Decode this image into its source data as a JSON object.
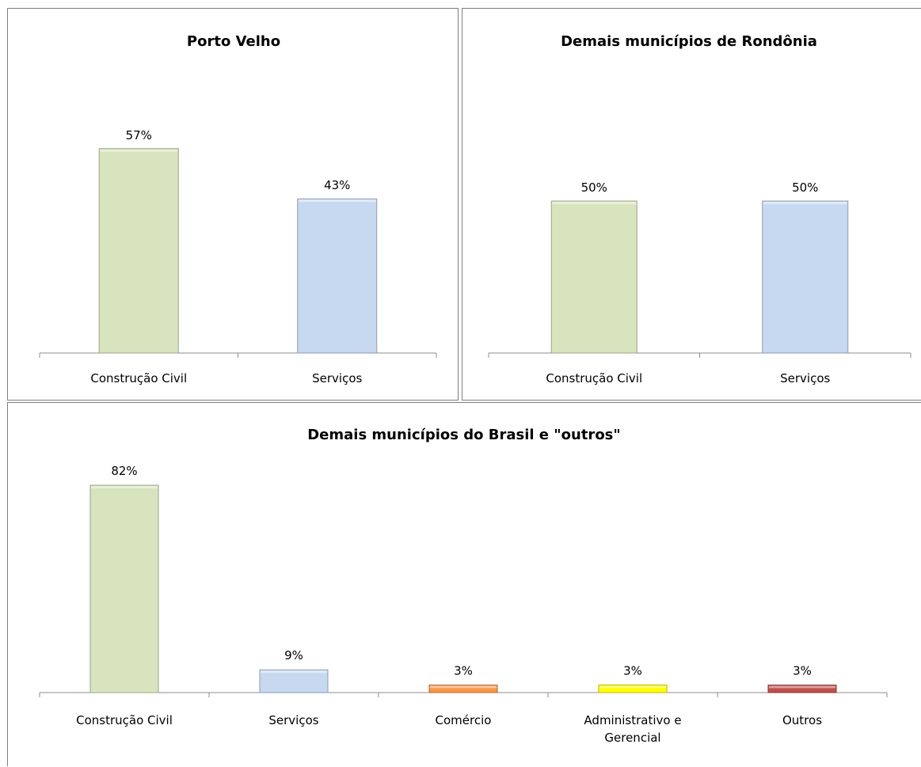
{
  "chart_data": [
    {
      "type": "bar",
      "title": "Porto Velho",
      "categories": [
        "Construção Civil",
        "Serviços"
      ],
      "values": [
        57,
        43
      ],
      "value_labels": [
        "57%",
        "43%"
      ],
      "colors": [
        "#d7e4bd",
        "#c6d9f1"
      ],
      "unit": "%",
      "grid": false,
      "legend": "none"
    },
    {
      "type": "bar",
      "title": "Demais municípios de Rondônia",
      "categories": [
        "Construção Civil",
        "Serviços"
      ],
      "values": [
        50,
        50
      ],
      "value_labels": [
        "50%",
        "50%"
      ],
      "colors": [
        "#d7e4bd",
        "#c6d9f1"
      ],
      "unit": "%",
      "grid": false,
      "legend": "none"
    },
    {
      "type": "bar",
      "title": "Demais municípios do Brasil e \"outros\"",
      "categories": [
        "Construção Civil",
        "Serviços",
        "Comércio",
        "Administrativo e Gerencial",
        "Outros"
      ],
      "category_lines": [
        [
          "Construção Civil"
        ],
        [
          "Serviços"
        ],
        [
          "Comércio"
        ],
        [
          "Administrativo e",
          "Gerencial"
        ],
        [
          "Outros"
        ]
      ],
      "values": [
        82,
        9,
        3,
        3,
        3
      ],
      "value_labels": [
        "82%",
        "9%",
        "3%",
        "3%",
        "3%"
      ],
      "colors": [
        "#d7e4bd",
        "#c6d9f1",
        "#f79646",
        "#ffff00",
        "#c0504d"
      ],
      "unit": "%",
      "grid": false,
      "legend": "none"
    }
  ]
}
